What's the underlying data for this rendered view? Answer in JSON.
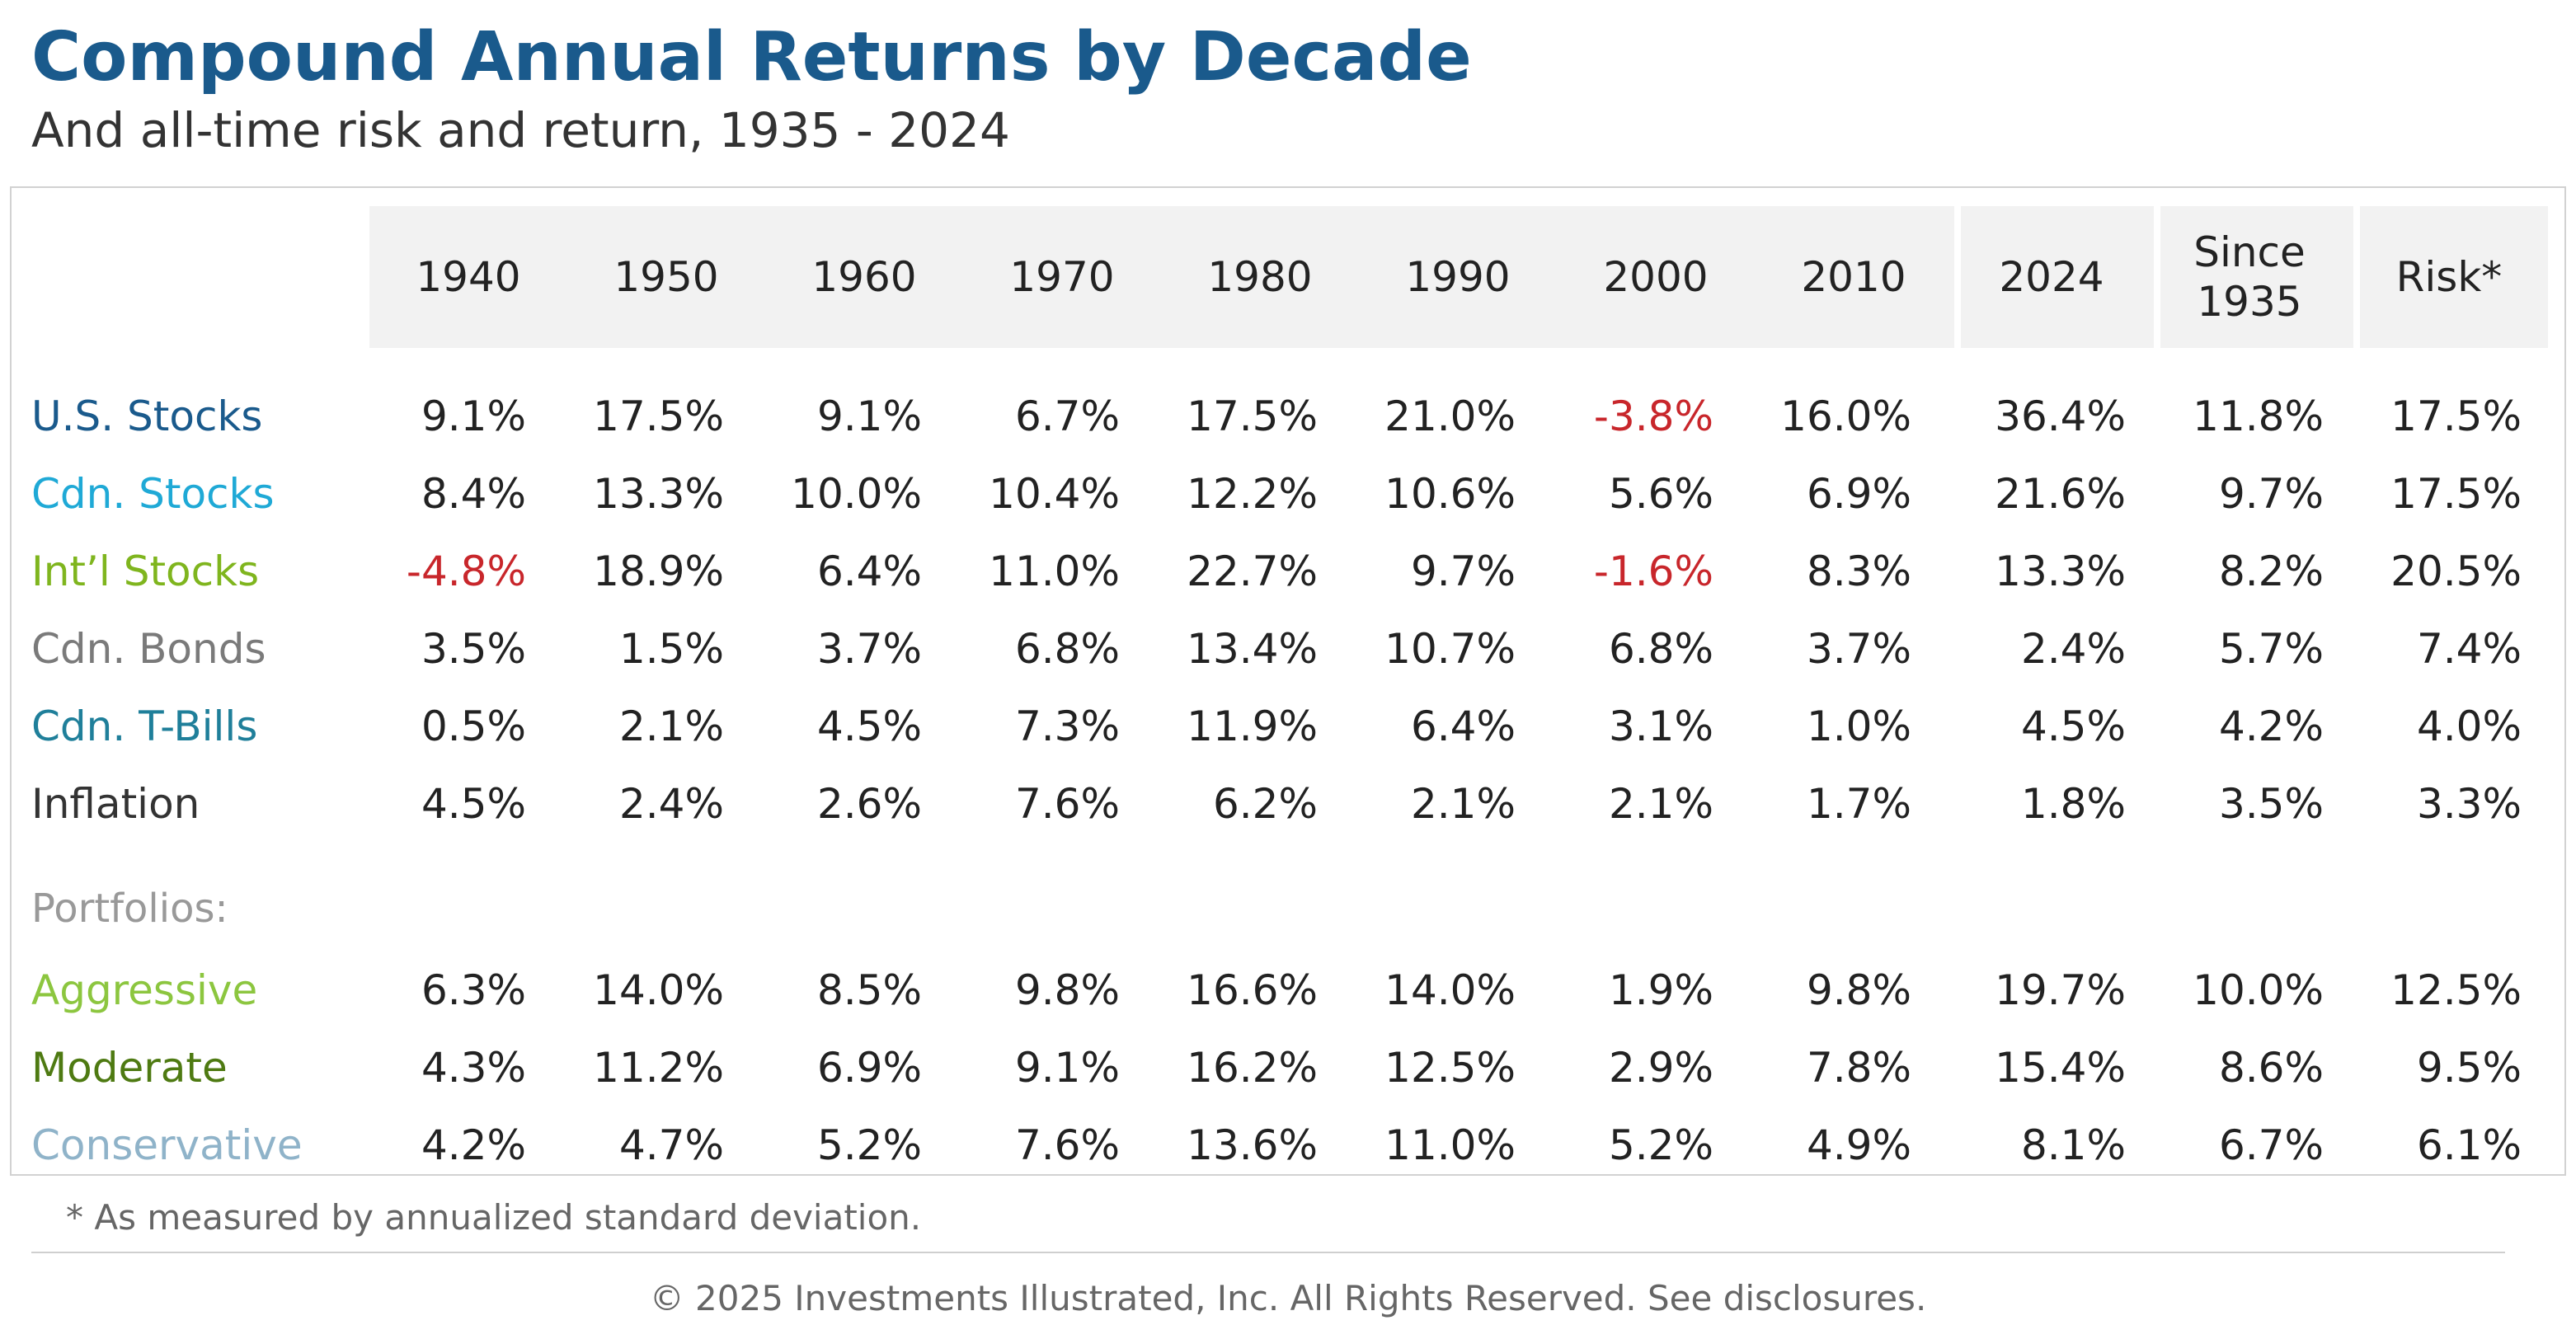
{
  "title": "Compound Annual Returns by Decade",
  "subtitle": "And all-time risk and return, 1935 - 2024",
  "footnote": "* As measured by annualized standard deviation.",
  "copyright": "© 2025 Investments Illustrated, Inc. All Rights Reserved. See disclosures.",
  "colors": {
    "title": "#1a5a8c",
    "negative": "#c8262b",
    "header_bg": "#f2f2f2"
  },
  "chart_data": {
    "type": "table",
    "title": "Compound Annual Returns by Decade",
    "subtitle": "And all-time risk and return, 1935 - 2024",
    "columns": [
      "1940",
      "1950",
      "1960",
      "1970",
      "1980",
      "1990",
      "2000",
      "2010",
      "2024",
      "Since 1935",
      "Risk*"
    ],
    "section_label": "Portfolios:",
    "rows": [
      {
        "label": "U.S. Stocks",
        "color": "#1a5a8c",
        "values": [
          "9.1%",
          "17.5%",
          "9.1%",
          "6.7%",
          "17.5%",
          "21.0%",
          "-3.8%",
          "16.0%",
          "36.4%",
          "11.8%",
          "17.5%"
        ]
      },
      {
        "label": "Cdn. Stocks",
        "color": "#1fa9d6",
        "values": [
          "8.4%",
          "13.3%",
          "10.0%",
          "10.4%",
          "12.2%",
          "10.6%",
          "5.6%",
          "6.9%",
          "21.6%",
          "9.7%",
          "17.5%"
        ]
      },
      {
        "label": "Int’l Stocks",
        "color": "#7fb51e",
        "values": [
          "-4.8%",
          "18.9%",
          "6.4%",
          "11.0%",
          "22.7%",
          "9.7%",
          "-1.6%",
          "8.3%",
          "13.3%",
          "8.2%",
          "20.5%"
        ]
      },
      {
        "label": "Cdn. Bonds",
        "color": "#7a7a7a",
        "values": [
          "3.5%",
          "1.5%",
          "3.7%",
          "6.8%",
          "13.4%",
          "10.7%",
          "6.8%",
          "3.7%",
          "2.4%",
          "5.7%",
          "7.4%"
        ]
      },
      {
        "label": "Cdn. T-Bills",
        "color": "#1f7f9a",
        "values": [
          "0.5%",
          "2.1%",
          "4.5%",
          "7.3%",
          "11.9%",
          "6.4%",
          "3.1%",
          "1.0%",
          "4.5%",
          "4.2%",
          "4.0%"
        ]
      },
      {
        "label": "Inflation",
        "color": "#333333",
        "values": [
          "4.5%",
          "2.4%",
          "2.6%",
          "7.6%",
          "6.2%",
          "2.1%",
          "2.1%",
          "1.7%",
          "1.8%",
          "3.5%",
          "3.3%"
        ]
      }
    ],
    "portfolio_rows": [
      {
        "label": "Aggressive",
        "color": "#8cc63f",
        "values": [
          "6.3%",
          "14.0%",
          "8.5%",
          "9.8%",
          "16.6%",
          "14.0%",
          "1.9%",
          "9.8%",
          "19.7%",
          "10.0%",
          "12.5%"
        ]
      },
      {
        "label": "Moderate",
        "color": "#4e7a12",
        "values": [
          "4.3%",
          "11.2%",
          "6.9%",
          "9.1%",
          "16.2%",
          "12.5%",
          "2.9%",
          "7.8%",
          "15.4%",
          "8.6%",
          "9.5%"
        ]
      },
      {
        "label": "Conservative",
        "color": "#8fb3c9",
        "values": [
          "4.2%",
          "4.7%",
          "5.2%",
          "7.6%",
          "13.6%",
          "11.0%",
          "5.2%",
          "4.9%",
          "8.1%",
          "6.7%",
          "6.1%"
        ]
      }
    ]
  }
}
